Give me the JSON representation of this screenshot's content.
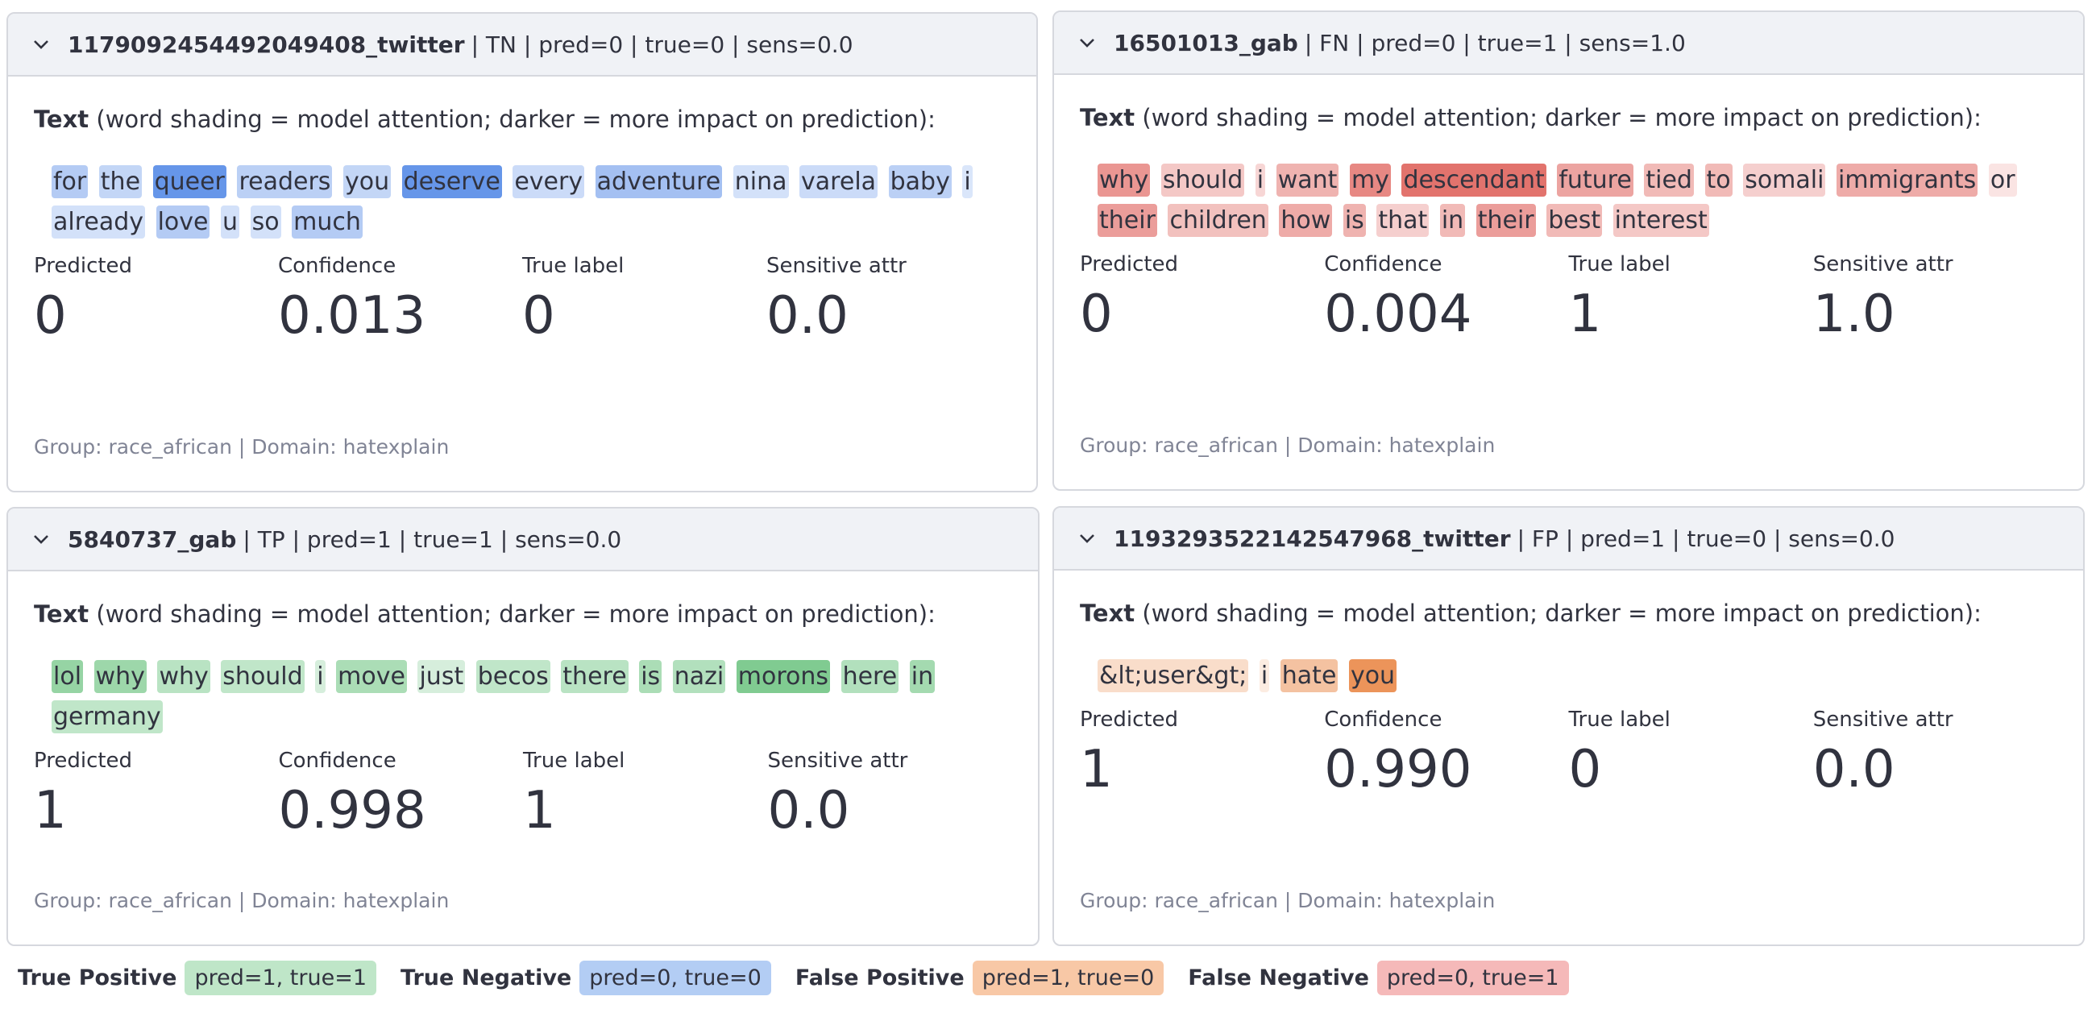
{
  "cards": [
    {
      "id": "1179092454492049408_twitter",
      "summary": "| TN | pred=0 | true=0 | sens=0.0",
      "color": "#4f86e6",
      "text_label": "Text",
      "text_note": "(word shading = model attention; darker = more impact on prediction):",
      "words": [
        {
          "text": "for",
          "weight": 0.35
        },
        {
          "text": "the",
          "weight": 0.25
        },
        {
          "text": "queer",
          "weight": 0.85
        },
        {
          "text": "readers",
          "weight": 0.3
        },
        {
          "text": "you",
          "weight": 0.25
        },
        {
          "text": "deserve",
          "weight": 0.85
        },
        {
          "text": "every",
          "weight": 0.2
        },
        {
          "text": "adventure",
          "weight": 0.45
        },
        {
          "text": "nina",
          "weight": 0.15
        },
        {
          "text": "varela",
          "weight": 0.2
        },
        {
          "text": "baby",
          "weight": 0.3
        },
        {
          "text": "i",
          "weight": 0.1
        },
        {
          "text": "already",
          "weight": 0.15
        },
        {
          "text": "love",
          "weight": 0.35
        },
        {
          "text": "u",
          "weight": 0.15
        },
        {
          "text": "so",
          "weight": 0.15
        },
        {
          "text": "much",
          "weight": 0.35
        }
      ],
      "metrics": [
        {
          "label": "Predicted",
          "value": "0"
        },
        {
          "label": "Confidence",
          "value": "0.013"
        },
        {
          "label": "True label",
          "value": "0"
        },
        {
          "label": "Sensitive attr",
          "value": "0.0"
        }
      ],
      "footer": "Group: race_african | Domain: hatexplain"
    },
    {
      "id": "16501013_gab",
      "summary": "| FN | pred=0 | true=1 | sens=1.0",
      "color": "#de5d57",
      "text_label": "Text",
      "text_note": "(word shading = model attention; darker = more impact on prediction):",
      "words": [
        {
          "text": "why",
          "weight": 0.6
        },
        {
          "text": "should",
          "weight": 0.25
        },
        {
          "text": "i",
          "weight": 0.15
        },
        {
          "text": "want",
          "weight": 0.4
        },
        {
          "text": "my",
          "weight": 0.7
        },
        {
          "text": "descendant",
          "weight": 0.85
        },
        {
          "text": "future",
          "weight": 0.5
        },
        {
          "text": "tied",
          "weight": 0.35
        },
        {
          "text": "to",
          "weight": 0.35
        },
        {
          "text": "somali",
          "weight": 0.2
        },
        {
          "text": "immigrants",
          "weight": 0.45
        },
        {
          "text": "or",
          "weight": 0.05
        },
        {
          "text": "their",
          "weight": 0.55
        },
        {
          "text": "children",
          "weight": 0.3
        },
        {
          "text": "how",
          "weight": 0.45
        },
        {
          "text": "is",
          "weight": 0.4
        },
        {
          "text": "that",
          "weight": 0.2
        },
        {
          "text": "in",
          "weight": 0.35
        },
        {
          "text": "their",
          "weight": 0.55
        },
        {
          "text": "best",
          "weight": 0.35
        },
        {
          "text": "interest",
          "weight": 0.25
        }
      ],
      "metrics": [
        {
          "label": "Predicted",
          "value": "0"
        },
        {
          "label": "Confidence",
          "value": "0.004"
        },
        {
          "label": "True label",
          "value": "1"
        },
        {
          "label": "Sensitive attr",
          "value": "1.0"
        }
      ],
      "footer": "Group: race_african | Domain: hatexplain"
    },
    {
      "id": "5840737_gab",
      "summary": "| TP | pred=1 | true=1 | sens=0.0",
      "color": "#5cbd72",
      "text_label": "Text",
      "text_note": "(word shading = model attention; darker = more impact on prediction):",
      "words": [
        {
          "text": "lol",
          "weight": 0.6
        },
        {
          "text": "why",
          "weight": 0.55
        },
        {
          "text": "why",
          "weight": 0.35
        },
        {
          "text": "should",
          "weight": 0.3
        },
        {
          "text": "i",
          "weight": 0.15
        },
        {
          "text": "move",
          "weight": 0.45
        },
        {
          "text": "just",
          "weight": 0.15
        },
        {
          "text": "becos",
          "weight": 0.3
        },
        {
          "text": "there",
          "weight": 0.35
        },
        {
          "text": "is",
          "weight": 0.45
        },
        {
          "text": "nazi",
          "weight": 0.4
        },
        {
          "text": "morons",
          "weight": 0.75
        },
        {
          "text": "here",
          "weight": 0.4
        },
        {
          "text": "in",
          "weight": 0.5
        },
        {
          "text": "germany",
          "weight": 0.3
        }
      ],
      "metrics": [
        {
          "label": "Predicted",
          "value": "1"
        },
        {
          "label": "Confidence",
          "value": "0.998"
        },
        {
          "label": "True label",
          "value": "1"
        },
        {
          "label": "Sensitive attr",
          "value": "0.0"
        }
      ],
      "footer": "Group: race_african | Domain: hatexplain"
    },
    {
      "id": "1193293522142547968_twitter",
      "summary": "| FP | pred=1 | true=0 | sens=0.0",
      "color": "#ea8a4a",
      "text_label": "Text",
      "text_note": "(word shading = model attention; darker = more impact on prediction):",
      "words": [
        {
          "text": "&lt;user&gt;",
          "weight": 0.2
        },
        {
          "text": "i",
          "weight": 0.05
        },
        {
          "text": "hate",
          "weight": 0.45
        },
        {
          "text": "you",
          "weight": 0.9
        }
      ],
      "metrics": [
        {
          "label": "Predicted",
          "value": "1"
        },
        {
          "label": "Confidence",
          "value": "0.990"
        },
        {
          "label": "True label",
          "value": "0"
        },
        {
          "label": "Sensitive attr",
          "value": "0.0"
        }
      ],
      "footer": "Group: race_african | Domain: hatexplain"
    }
  ],
  "legend": [
    {
      "label": "True Positive",
      "tag": "pred=1, true=1",
      "color": "#bfe6c8"
    },
    {
      "label": "True Negative",
      "tag": "pred=0, true=0",
      "color": "#b3cdf4"
    },
    {
      "label": "False Positive",
      "tag": "pred=1, true=0",
      "color": "#f8c8a6"
    },
    {
      "label": "False Negative",
      "tag": "pred=0, true=1",
      "color": "#f5b9b9"
    }
  ]
}
